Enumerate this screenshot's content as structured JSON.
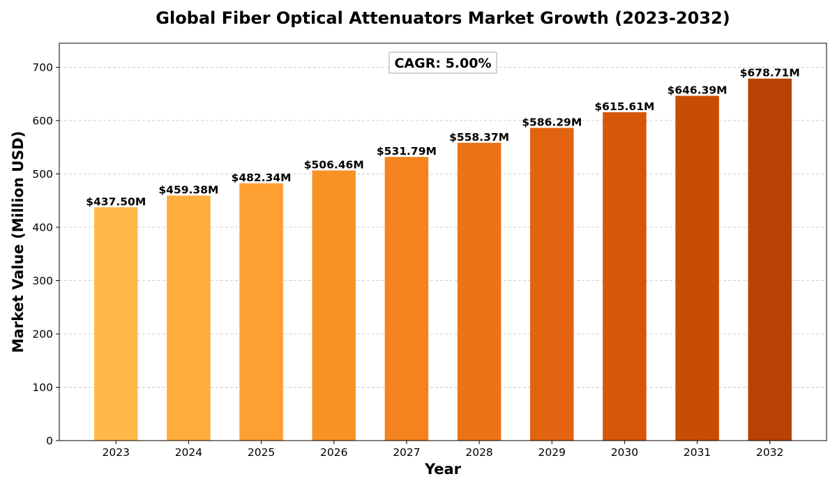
{
  "chart_data": {
    "type": "bar",
    "title": "Global Fiber Optical Attenuators Market Growth (2023-2032)",
    "xlabel": "Year",
    "ylabel": "Market Value (Million USD)",
    "categories": [
      "2023",
      "2024",
      "2025",
      "2026",
      "2027",
      "2028",
      "2029",
      "2030",
      "2031",
      "2032"
    ],
    "values": [
      437.5,
      459.38,
      482.34,
      506.46,
      531.79,
      558.37,
      586.29,
      615.61,
      646.39,
      678.71
    ],
    "data_labels": [
      "$437.50M",
      "$459.38M",
      "$482.34M",
      "$506.46M",
      "$531.79M",
      "$558.37M",
      "$586.29M",
      "$615.61M",
      "$646.39M",
      "$678.71M"
    ],
    "colors": [
      "#FFB94A",
      "#FEAD3E",
      "#FD9F31",
      "#F99225",
      "#F4831E",
      "#EC7316",
      "#E26410",
      "#D6560A",
      "#C84C03",
      "#B84204"
    ],
    "ylim": [
      0,
      745
    ],
    "yticks": [
      0,
      100,
      200,
      300,
      400,
      500,
      600,
      700
    ],
    "annotation": "CAGR: 5.00%",
    "grid": "y-dashed",
    "legend": "none"
  }
}
